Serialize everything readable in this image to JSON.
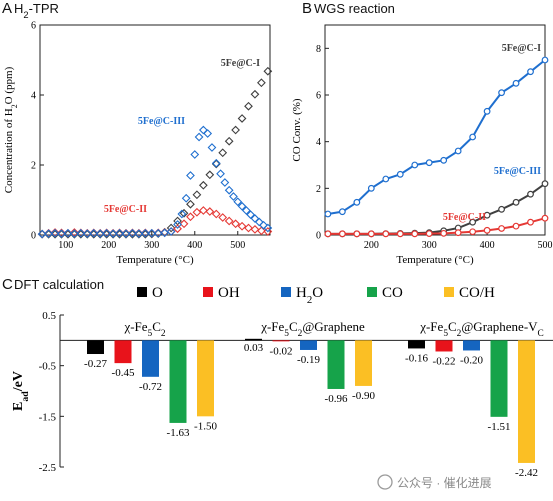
{
  "chart_data": [
    {
      "type": "scatter",
      "panel_letter": "A",
      "title": "H₂-TPR",
      "xlabel": "Temperature (°C)",
      "ylabel": "Concentration of H₂O (ppm)",
      "xlim": [
        40,
        575
      ],
      "ylim": [
        0,
        6
      ],
      "xticks": [
        100,
        200,
        300,
        400,
        500
      ],
      "yticks": [
        0,
        2,
        4,
        6
      ],
      "marker": "open-diamond",
      "series": [
        {
          "name": "5Fe@C-I",
          "color": "#404040",
          "x": [
            45,
            60,
            75,
            90,
            105,
            120,
            135,
            150,
            165,
            180,
            195,
            210,
            225,
            240,
            255,
            270,
            285,
            300,
            315,
            330,
            345,
            360,
            375,
            390,
            405,
            420,
            435,
            450,
            465,
            480,
            495,
            510,
            525,
            540,
            555,
            570
          ],
          "y": [
            0.02,
            0.02,
            0.02,
            0.02,
            0.02,
            0.02,
            0.02,
            0.02,
            0.02,
            0.02,
            0.02,
            0.02,
            0.02,
            0.02,
            0.02,
            0.02,
            0.02,
            0.03,
            0.04,
            0.08,
            0.2,
            0.4,
            0.62,
            0.88,
            1.15,
            1.42,
            1.72,
            2.03,
            2.35,
            2.68,
            3.0,
            3.33,
            3.68,
            4.02,
            4.35,
            4.68
          ]
        },
        {
          "name": "5Fe@C-II",
          "color": "#e53935",
          "x": [
            45,
            60,
            75,
            90,
            105,
            120,
            135,
            150,
            165,
            180,
            195,
            210,
            225,
            240,
            255,
            270,
            285,
            300,
            315,
            330,
            345,
            360,
            375,
            390,
            405,
            420,
            435,
            450,
            465,
            480,
            495,
            510,
            525,
            540,
            555,
            570
          ],
          "y": [
            0.03,
            0.05,
            0.07,
            0.06,
            0.05,
            0.07,
            0.06,
            0.05,
            0.06,
            0.05,
            0.06,
            0.05,
            0.06,
            0.05,
            0.06,
            0.05,
            0.06,
            0.05,
            0.06,
            0.07,
            0.1,
            0.18,
            0.32,
            0.52,
            0.65,
            0.7,
            0.67,
            0.6,
            0.5,
            0.4,
            0.32,
            0.25,
            0.2,
            0.16,
            0.12,
            0.1
          ]
        },
        {
          "name": "5Fe@C-III",
          "color": "#1f6fcf",
          "x": [
            45,
            60,
            75,
            90,
            105,
            120,
            135,
            150,
            165,
            180,
            195,
            210,
            225,
            240,
            255,
            270,
            285,
            300,
            315,
            330,
            345,
            360,
            370,
            380,
            390,
            400,
            410,
            420,
            430,
            440,
            450,
            460,
            470,
            480,
            490,
            500,
            510,
            520,
            530,
            540,
            550,
            560,
            570
          ],
          "y": [
            0.03,
            0.04,
            0.05,
            0.04,
            0.05,
            0.04,
            0.05,
            0.04,
            0.05,
            0.04,
            0.05,
            0.04,
            0.05,
            0.04,
            0.05,
            0.04,
            0.05,
            0.05,
            0.05,
            0.06,
            0.1,
            0.3,
            0.6,
            1.05,
            1.7,
            2.3,
            2.8,
            3.0,
            2.9,
            2.5,
            2.05,
            1.75,
            1.5,
            1.28,
            1.1,
            0.95,
            0.82,
            0.7,
            0.58,
            0.47,
            0.37,
            0.28,
            0.2
          ]
        }
      ]
    },
    {
      "type": "line",
      "panel_letter": "B",
      "title": "WGS reaction",
      "xlabel": "Temperature (°C)",
      "ylabel": "CO Conv. (%)",
      "xlim": [
        120,
        500
      ],
      "ylim": [
        0,
        9
      ],
      "xticks": [
        200,
        300,
        400,
        500
      ],
      "yticks": [
        0,
        2,
        4,
        6,
        8
      ],
      "marker": "open-circle",
      "series": [
        {
          "name": "5Fe@C-I",
          "color": "#404040",
          "x": [
            125,
            150,
            175,
            200,
            225,
            250,
            275,
            300,
            325,
            350,
            375,
            400,
            425,
            450,
            475,
            500
          ],
          "y": [
            0.05,
            0.05,
            0.05,
            0.05,
            0.06,
            0.07,
            0.08,
            0.1,
            0.18,
            0.3,
            0.55,
            0.85,
            1.1,
            1.4,
            1.75,
            2.2
          ]
        },
        {
          "name": "5Fe@C-II",
          "color": "#e53935",
          "x": [
            125,
            150,
            175,
            200,
            225,
            250,
            275,
            300,
            325,
            350,
            375,
            400,
            425,
            450,
            475,
            500
          ],
          "y": [
            0.05,
            0.05,
            0.05,
            0.05,
            0.05,
            0.05,
            0.05,
            0.06,
            0.07,
            0.1,
            0.14,
            0.2,
            0.28,
            0.38,
            0.55,
            0.72
          ]
        },
        {
          "name": "5Fe@C-III",
          "color": "#1f6fcf",
          "x": [
            125,
            150,
            175,
            200,
            225,
            250,
            275,
            300,
            325,
            350,
            375,
            400,
            425,
            450,
            475,
            500
          ],
          "y": [
            0.9,
            1.0,
            1.4,
            2.0,
            2.4,
            2.6,
            3.0,
            3.1,
            3.2,
            3.6,
            4.2,
            5.3,
            6.1,
            6.5,
            7.0,
            7.5
          ]
        }
      ]
    },
    {
      "type": "bar",
      "panel_letter": "C",
      "title": "DFT calculation",
      "ylabel": "E_ad/eV",
      "ylim": [
        -2.5,
        0.5
      ],
      "yticks": [
        0.5,
        -0.5,
        -1.5,
        -2.5
      ],
      "legend": [
        "O",
        "OH",
        "H₂O",
        "CO",
        "CO/H"
      ],
      "legend_colors": [
        "#000000",
        "#e8131b",
        "#1565c0",
        "#16a34a",
        "#fbbf24"
      ],
      "groups": [
        {
          "label": "χ-Fe₅C₂",
          "values": [
            -0.27,
            -0.45,
            -0.72,
            -1.63,
            -1.5
          ],
          "value_labels": [
            "-0.27",
            "-0.45",
            "-0.72",
            "-1.63",
            "-1.50"
          ]
        },
        {
          "label": "χ-Fe₅C₂@Graphene",
          "values": [
            0.03,
            -0.02,
            -0.19,
            -0.96,
            -0.9
          ],
          "value_labels": [
            "0.03",
            "-0.02",
            "-0.19",
            "-0.96",
            "-0.90"
          ]
        },
        {
          "label": "χ-Fe₅C₂@Graphene-Vᴄ",
          "values": [
            -0.16,
            -0.22,
            -0.2,
            -1.51,
            -2.42
          ],
          "value_labels": [
            "-0.16",
            "-0.22",
            "-0.20",
            "-1.51",
            "-2.42"
          ]
        }
      ]
    }
  ],
  "watermark": "公众号 · 催化进展"
}
